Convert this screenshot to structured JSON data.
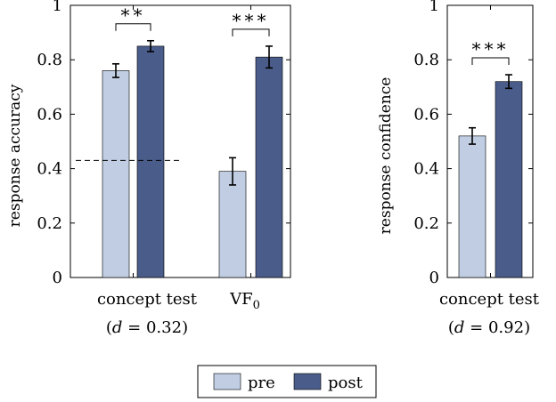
{
  "colors": {
    "pre": "#c0cde2",
    "post": "#4a5c8a",
    "axis": "#000000",
    "error": "#000000"
  },
  "legend": {
    "pre": "pre",
    "post": "post"
  },
  "chart_data": [
    {
      "type": "bar",
      "ylabel": "response accuracy",
      "ylim": [
        0,
        1
      ],
      "yticks": [
        "0",
        "0.2",
        "0.4",
        "0.6",
        "0.8",
        "1"
      ],
      "categories": [
        "concept test",
        "VF0"
      ],
      "category_labels": [
        {
          "main": "concept test",
          "sub_pre": "(",
          "sub_d": "d",
          "sub_eq": "=",
          "sub_val": "0.32)"
        },
        {
          "main": "VF",
          "subscript": "0"
        }
      ],
      "series": [
        {
          "name": "pre",
          "values": [
            0.76,
            0.39
          ],
          "errors": [
            0.025,
            0.05
          ]
        },
        {
          "name": "post",
          "values": [
            0.85,
            0.81
          ],
          "errors": [
            0.02,
            0.04
          ]
        }
      ],
      "significance": [
        {
          "category": 0,
          "label": "**"
        },
        {
          "category": 1,
          "label": "***"
        }
      ],
      "reference_line": {
        "value": 0.43,
        "style": "dashed",
        "category": 0
      }
    },
    {
      "type": "bar",
      "ylabel": "response confidence",
      "ylim": [
        0,
        1
      ],
      "yticks": [
        "0",
        "0.2",
        "0.4",
        "0.6",
        "0.8",
        "1"
      ],
      "categories": [
        "concept test"
      ],
      "category_labels": [
        {
          "main": "concept test",
          "sub_pre": "(",
          "sub_d": "d",
          "sub_eq": "=",
          "sub_val": "0.92)"
        }
      ],
      "series": [
        {
          "name": "pre",
          "values": [
            0.52
          ],
          "errors": [
            0.03
          ]
        },
        {
          "name": "post",
          "values": [
            0.72
          ],
          "errors": [
            0.025
          ]
        }
      ],
      "significance": [
        {
          "category": 0,
          "label": "***"
        }
      ]
    }
  ]
}
